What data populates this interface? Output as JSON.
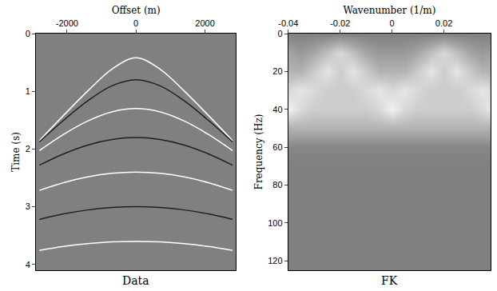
{
  "chart_data": [
    {
      "type": "line",
      "title": "Data",
      "x_label": "Offset (m)",
      "y_label": "Time (s)",
      "xlim": [
        -2900,
        2900
      ],
      "ylim": [
        0,
        4.1
      ],
      "xticks": [
        -2000,
        0,
        2000
      ],
      "yticks": [
        0,
        1,
        2,
        3,
        4
      ],
      "x": [
        -2800,
        -2100,
        -1400,
        -700,
        0,
        700,
        1400,
        2100,
        2800
      ],
      "series": [
        {
          "color": "#ffffff",
          "values": [
            1.855,
            1.418,
            0.996,
            0.617,
            0.42,
            0.617,
            0.996,
            1.418,
            1.855
          ]
        },
        {
          "color": "#202020",
          "values": [
            1.876,
            1.503,
            1.166,
            0.906,
            0.8,
            0.906,
            1.166,
            1.503,
            1.876
          ]
        },
        {
          "color": "#ffffff",
          "values": [
            2.027,
            1.747,
            1.515,
            1.357,
            1.3,
            1.357,
            1.515,
            1.747,
            2.027
          ]
        },
        {
          "color": "#202020",
          "values": [
            2.28,
            2.084,
            1.931,
            1.834,
            1.8,
            1.834,
            1.931,
            2.084,
            2.28
          ]
        },
        {
          "color": "#ffffff",
          "values": [
            2.717,
            2.583,
            2.483,
            2.421,
            2.4,
            2.421,
            2.483,
            2.583,
            2.717
          ]
        },
        {
          "color": "#202020",
          "values": [
            3.219,
            3.125,
            3.056,
            3.014,
            3.0,
            3.014,
            3.056,
            3.125,
            3.219
          ]
        },
        {
          "color": "#ffffff",
          "values": [
            3.758,
            3.689,
            3.64,
            3.61,
            3.6,
            3.61,
            3.64,
            3.689,
            3.758
          ]
        }
      ]
    },
    {
      "type": "heatmap",
      "title": "FK",
      "x_label": "Wavenumber (1/m)",
      "y_label": "Frequency (Hz)",
      "xlim": [
        -0.04,
        0.038
      ],
      "ylim": [
        0,
        125
      ],
      "xticks": [
        -0.04,
        -0.02,
        0,
        0.02
      ],
      "yticks": [
        0,
        20,
        40,
        60,
        80,
        100,
        120
      ],
      "x": [
        -0.04,
        -0.035,
        -0.03,
        -0.025,
        -0.02,
        -0.015,
        -0.01,
        -0.005,
        0,
        0.005,
        0.01,
        0.015,
        0.02,
        0.025,
        0.03,
        0.035,
        0.04
      ],
      "y": [
        0,
        10,
        20,
        30,
        40,
        50,
        60,
        70,
        80,
        90,
        100,
        110,
        120
      ],
      "zlim": [
        0,
        1
      ],
      "cells": [
        [
          0,
          0,
          0,
          0,
          0,
          0,
          0,
          0,
          0,
          0,
          0,
          0,
          0,
          0,
          0,
          0,
          0
        ],
        [
          0.3,
          0.2,
          0.3,
          0.5,
          0.7,
          0.5,
          0.3,
          0.2,
          0.2,
          0.2,
          0.3,
          0.5,
          0.7,
          0.5,
          0.3,
          0.2,
          0.3
        ],
        [
          0.4,
          0.4,
          0.6,
          0.8,
          0.6,
          0.8,
          0.6,
          0.4,
          0.4,
          0.4,
          0.6,
          0.8,
          0.6,
          0.8,
          0.6,
          0.4,
          0.4
        ],
        [
          0.7,
          0.8,
          0.7,
          0.6,
          0.6,
          0.6,
          0.7,
          0.8,
          0.7,
          0.8,
          0.7,
          0.6,
          0.6,
          0.6,
          0.7,
          0.8,
          0.7
        ],
        [
          0.9,
          0.7,
          0.6,
          0.6,
          0.6,
          0.6,
          0.6,
          0.7,
          0.9,
          0.7,
          0.6,
          0.6,
          0.6,
          0.6,
          0.6,
          0.7,
          0.9
        ],
        [
          0.4,
          0.4,
          0.4,
          0.4,
          0.4,
          0.4,
          0.4,
          0.4,
          0.4,
          0.4,
          0.4,
          0.4,
          0.4,
          0.4,
          0.4,
          0.4,
          0.4
        ],
        [
          0.05,
          0.05,
          0.05,
          0.05,
          0.05,
          0.05,
          0.05,
          0.05,
          0.05,
          0.05,
          0.05,
          0.05,
          0.05,
          0.05,
          0.05,
          0.05,
          0.05
        ],
        [
          0,
          0,
          0,
          0,
          0,
          0,
          0,
          0,
          0,
          0,
          0,
          0,
          0,
          0,
          0,
          0,
          0
        ],
        [
          0,
          0,
          0,
          0,
          0,
          0,
          0,
          0,
          0,
          0,
          0,
          0,
          0,
          0,
          0,
          0,
          0
        ],
        [
          0,
          0,
          0,
          0,
          0,
          0,
          0,
          0,
          0,
          0,
          0,
          0,
          0,
          0,
          0,
          0,
          0
        ],
        [
          0,
          0,
          0,
          0,
          0,
          0,
          0,
          0,
          0,
          0,
          0,
          0,
          0,
          0,
          0,
          0,
          0
        ],
        [
          0,
          0,
          0,
          0,
          0,
          0,
          0,
          0,
          0,
          0,
          0,
          0,
          0,
          0,
          0,
          0,
          0
        ],
        [
          0,
          0,
          0,
          0,
          0,
          0,
          0,
          0,
          0,
          0,
          0,
          0,
          0,
          0,
          0,
          0,
          0
        ]
      ]
    }
  ]
}
